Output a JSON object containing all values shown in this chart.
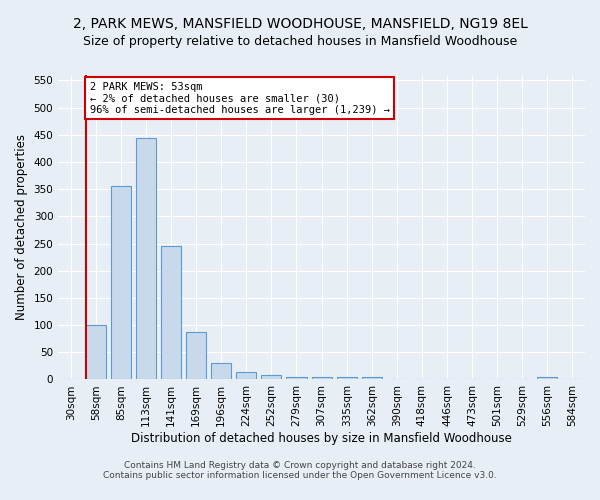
{
  "title": "2, PARK MEWS, MANSFIELD WOODHOUSE, MANSFIELD, NG19 8EL",
  "subtitle": "Size of property relative to detached houses in Mansfield Woodhouse",
  "xlabel": "Distribution of detached houses by size in Mansfield Woodhouse",
  "ylabel": "Number of detached properties",
  "categories": [
    "30sqm",
    "58sqm",
    "85sqm",
    "113sqm",
    "141sqm",
    "169sqm",
    "196sqm",
    "224sqm",
    "252sqm",
    "279sqm",
    "307sqm",
    "335sqm",
    "362sqm",
    "390sqm",
    "418sqm",
    "446sqm",
    "473sqm",
    "501sqm",
    "529sqm",
    "556sqm",
    "584sqm"
  ],
  "values": [
    0,
    100,
    355,
    445,
    245,
    88,
    30,
    14,
    8,
    5,
    5,
    4,
    5,
    0,
    0,
    0,
    0,
    0,
    0,
    4,
    0
  ],
  "bar_color": "#c9d9ec",
  "bar_edge_color": "#5b9bd5",
  "annotation_title": "2 PARK MEWS: 53sqm",
  "annotation_line1": "← 2% of detached houses are smaller (30)",
  "annotation_line2": "96% of semi-detached houses are larger (1,239) →",
  "annotation_box_color": "#ffffff",
  "annotation_box_edge_color": "#cc0000",
  "marker_line_color": "#cc0000",
  "ylim": [
    0,
    560
  ],
  "yticks": [
    0,
    50,
    100,
    150,
    200,
    250,
    300,
    350,
    400,
    450,
    500,
    550
  ],
  "footnote1": "Contains HM Land Registry data © Crown copyright and database right 2024.",
  "footnote2": "Contains public sector information licensed under the Open Government Licence v3.0.",
  "background_color": "#e8eef5",
  "plot_background_color": "#e8eef5",
  "grid_color": "#ffffff",
  "title_fontsize": 10,
  "subtitle_fontsize": 9,
  "axis_label_fontsize": 8.5,
  "tick_fontsize": 7.5,
  "footnote_fontsize": 6.5
}
